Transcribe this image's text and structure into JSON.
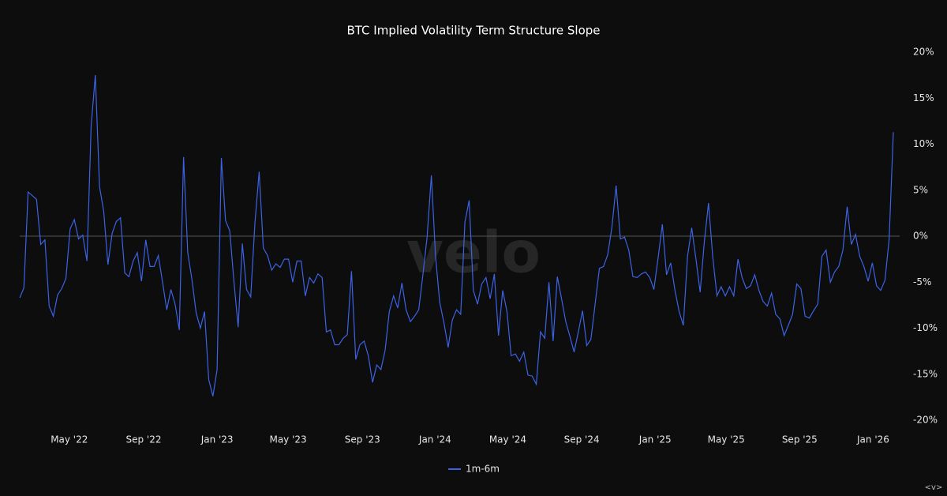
{
  "chart_data": {
    "type": "line",
    "title": "BTC Implied Volatility Term Structure Slope",
    "watermark": "velo",
    "corner_mark": "<v>",
    "x": [
      0,
      1,
      2,
      3,
      4,
      5,
      6,
      7,
      8,
      9,
      10,
      11,
      12,
      13,
      14,
      15,
      16,
      17,
      18,
      19,
      20,
      21,
      22,
      23,
      24,
      25,
      26,
      27,
      28,
      29,
      30,
      31,
      32,
      33,
      34,
      35,
      36,
      37,
      38,
      39,
      40,
      41,
      42,
      43,
      44,
      45,
      46,
      47,
      48,
      49,
      50,
      51,
      52,
      53,
      54,
      55,
      56,
      57,
      58,
      59,
      60,
      61,
      62,
      63,
      64,
      65,
      66,
      67,
      68,
      69,
      70,
      71,
      72,
      73,
      74,
      75,
      76,
      77,
      78,
      79,
      80,
      81,
      82,
      83,
      84,
      85,
      86,
      87,
      88,
      89,
      90,
      91,
      92,
      93,
      94,
      95,
      96,
      97,
      98,
      99,
      100,
      101,
      102,
      103,
      104,
      105,
      106,
      107,
      108,
      109,
      110,
      111,
      112,
      113,
      114,
      115,
      116,
      117,
      118,
      119,
      120,
      121,
      122,
      123,
      124,
      125,
      126,
      127,
      128,
      129,
      130,
      131,
      132,
      133,
      134,
      135,
      136,
      137,
      138,
      139,
      140,
      141,
      142,
      143,
      144,
      145,
      146,
      147,
      148,
      149,
      150,
      151,
      152,
      153,
      154,
      155,
      156,
      157,
      158,
      159,
      160,
      161,
      162,
      163,
      164,
      165,
      166,
      167,
      168,
      169,
      170,
      171,
      172,
      173,
      174,
      175,
      176,
      177,
      178,
      179,
      180,
      181,
      182,
      183,
      184,
      185,
      186,
      187,
      188,
      189,
      190,
      191,
      192,
      193,
      194,
      195,
      196,
      197,
      198,
      199,
      200,
      201,
      202,
      203,
      204,
      205,
      206,
      207,
      208
    ],
    "series": [
      {
        "name": "1m-6m",
        "color": "#3b63e6",
        "values": [
          -6.7,
          -5.6,
          4.8,
          4.4,
          4,
          -0.9,
          -0.4,
          -7.6,
          -8.7,
          -6.4,
          -5.7,
          -4.6,
          0.8,
          1.8,
          -0.3,
          0.1,
          -2.7,
          12,
          17.5,
          5.4,
          2.7,
          -3.1,
          0.3,
          1.6,
          2,
          -4,
          -4.4,
          -2.7,
          -1.8,
          -4.9,
          -0.4,
          -3.3,
          -3.3,
          -2.1,
          -5,
          -8,
          -5.8,
          -7.4,
          -10.2,
          8.6,
          -1.8,
          -4.7,
          -8.3,
          -10,
          -8.2,
          -15.6,
          -17.4,
          -14.5,
          8.5,
          1.7,
          0.6,
          -4.9,
          -9.9,
          -0.8,
          -5.8,
          -6.6,
          1.4,
          7,
          -1.3,
          -2.1,
          -3.7,
          -3,
          -3.4,
          -2.5,
          -2.5,
          -5,
          -2.7,
          -2.7,
          -6.5,
          -4.5,
          -5.1,
          -4.1,
          -4.5,
          -10.4,
          -10.2,
          -11.8,
          -11.8,
          -11.1,
          -10.7,
          -3.8,
          -13.4,
          -11.8,
          -11.4,
          -13,
          -15.9,
          -14,
          -14.5,
          -12.4,
          -8.2,
          -6.5,
          -7.8,
          -5.1,
          -8,
          -9.3,
          -8.7,
          -8,
          -4.2,
          -0.1,
          6.6,
          -2.2,
          -7.2,
          -9.4,
          -12.1,
          -9.1,
          -8,
          -8.5,
          1.5,
          3.9,
          -5.9,
          -7.4,
          -5.2,
          -4.5,
          -6.8,
          -4.1,
          -10.8,
          -5.9,
          -8.2,
          -13,
          -12.8,
          -13.6,
          -12.6,
          -15.1,
          -15.2,
          -16.1,
          -10.4,
          -11.1,
          -5,
          -11.4,
          -4.4,
          -6.8,
          -9.3,
          -10.9,
          -12.6,
          -10.4,
          -8.1,
          -11.9,
          -11.2,
          -7.4,
          -3.5,
          -3.3,
          -2,
          1,
          5.5,
          -0.3,
          -0.1,
          -1.5,
          -4.4,
          -4.5,
          -4.1,
          -3.9,
          -4.5,
          -5.8,
          -2.3,
          1.3,
          -4.2,
          -2.9,
          -5.9,
          -8.2,
          -9.7,
          -2.2,
          0.9,
          -2.5,
          -6.1,
          -0.6,
          3.6,
          -2.2,
          -6.5,
          -5.5,
          -6.5,
          -5.5,
          -6.5,
          -2.5,
          -4.5,
          -5.7,
          -5.4,
          -4.2,
          -5.9,
          -7.1,
          -7.6,
          -6.2,
          -8.5,
          -9,
          -10.8,
          -9.7,
          -8.5,
          -5.2,
          -5.7,
          -8.7,
          -8.9,
          -8.1,
          -7.4,
          -2.2,
          -1.5,
          -5,
          -3.9,
          -3.3,
          -1.5,
          3.2,
          -0.9,
          0.2,
          -2.2,
          -3.3,
          -4.9,
          -2.9,
          -5.4,
          -5.9,
          -4.8,
          -0.3,
          11.3
        ]
      }
    ],
    "xlim": [
      0,
      208
    ],
    "xticks": [
      {
        "value": 11.8,
        "label": "May '22"
      },
      {
        "value": 29.5,
        "label": "Sep '22"
      },
      {
        "value": 47,
        "label": "Jan '23"
      },
      {
        "value": 63.9,
        "label": "May '23"
      },
      {
        "value": 81.6,
        "label": "Sep '23"
      },
      {
        "value": 98.9,
        "label": "Jan '24"
      },
      {
        "value": 116.2,
        "label": "May '24"
      },
      {
        "value": 133.8,
        "label": "Sep '24"
      },
      {
        "value": 151.3,
        "label": "Jan '25"
      },
      {
        "value": 168.2,
        "label": "May '25"
      },
      {
        "value": 185.7,
        "label": "Sep '25"
      },
      {
        "value": 203.2,
        "label": "Jan '26"
      }
    ],
    "ylim": [
      -20,
      20
    ],
    "yticks": [
      {
        "value": -20,
        "label": "-20%"
      },
      {
        "value": -15,
        "label": "-15%"
      },
      {
        "value": -10,
        "label": "-10%"
      },
      {
        "value": -5,
        "label": "-5%"
      },
      {
        "value": 0,
        "label": "0%"
      },
      {
        "value": 5,
        "label": "5%"
      },
      {
        "value": 10,
        "label": "10%"
      },
      {
        "value": 15,
        "label": "15%"
      },
      {
        "value": 20,
        "label": "20%"
      }
    ],
    "zero_line": true,
    "legend": "bottom"
  }
}
